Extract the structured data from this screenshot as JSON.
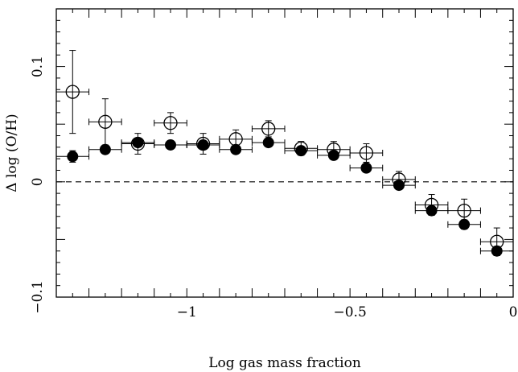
{
  "chart_data": {
    "type": "scatter",
    "xlabel": "Log gas mass fraction",
    "ylabel": "Δ log (O/H)",
    "xlim": [
      -1.4,
      0
    ],
    "ylim": [
      -0.1,
      0.15
    ],
    "x_ticks": [
      {
        "value": -1,
        "label": "−1"
      },
      {
        "value": -0.5,
        "label": "−0.5"
      },
      {
        "value": 0,
        "label": "0"
      }
    ],
    "y_ticks": [
      {
        "value": -0.1,
        "label": "−0.1"
      },
      {
        "value": 0,
        "label": "0"
      },
      {
        "value": 0.1,
        "label": "0.1"
      }
    ],
    "reference_line": {
      "y": 0,
      "style": "dashed"
    },
    "series": [
      {
        "marker": "open-circle",
        "points": [
          {
            "x": -1.35,
            "y": 0.078,
            "xerr": 0.05,
            "yerr_low": 0.036,
            "yerr_high": 0.036
          },
          {
            "x": -1.25,
            "y": 0.052,
            "xerr": 0.05,
            "yerr_low": 0.02,
            "yerr_high": 0.02
          },
          {
            "x": -1.15,
            "y": 0.033,
            "xerr": 0.05,
            "yerr_low": 0.009,
            "yerr_high": 0.009
          },
          {
            "x": -1.05,
            "y": 0.051,
            "xerr": 0.05,
            "yerr_low": 0.009,
            "yerr_high": 0.009
          },
          {
            "x": -0.95,
            "y": 0.033,
            "xerr": 0.05,
            "yerr_low": 0.009,
            "yerr_high": 0.009
          },
          {
            "x": -0.85,
            "y": 0.037,
            "xerr": 0.05,
            "yerr_low": 0.008,
            "yerr_high": 0.008
          },
          {
            "x": -0.75,
            "y": 0.046,
            "xerr": 0.05,
            "yerr_low": 0.007,
            "yerr_high": 0.007
          },
          {
            "x": -0.65,
            "y": 0.029,
            "xerr": 0.05,
            "yerr_low": 0.006,
            "yerr_high": 0.006
          },
          {
            "x": -0.55,
            "y": 0.028,
            "xerr": 0.05,
            "yerr_low": 0.007,
            "yerr_high": 0.007
          },
          {
            "x": -0.45,
            "y": 0.025,
            "xerr": 0.05,
            "yerr_low": 0.008,
            "yerr_high": 0.008
          },
          {
            "x": -0.35,
            "y": 0.002,
            "xerr": 0.05,
            "yerr_low": 0.007,
            "yerr_high": 0.007
          },
          {
            "x": -0.25,
            "y": -0.02,
            "xerr": 0.05,
            "yerr_low": 0.009,
            "yerr_high": 0.009
          },
          {
            "x": -0.15,
            "y": -0.025,
            "xerr": 0.05,
            "yerr_low": 0.01,
            "yerr_high": 0.01
          },
          {
            "x": -0.05,
            "y": -0.052,
            "xerr": 0.05,
            "yerr_low": 0.012,
            "yerr_high": 0.012
          }
        ]
      },
      {
        "marker": "filled-circle",
        "points": [
          {
            "x": -1.35,
            "y": 0.022,
            "xerr": 0.05,
            "yerr_low": 0.005,
            "yerr_high": 0.005
          },
          {
            "x": -1.25,
            "y": 0.028,
            "xerr": 0.05,
            "yerr_low": 0.003,
            "yerr_high": 0.003
          },
          {
            "x": -1.15,
            "y": 0.034,
            "xerr": 0.05,
            "yerr_low": 0.003,
            "yerr_high": 0.003
          },
          {
            "x": -1.05,
            "y": 0.032,
            "xerr": 0.05,
            "yerr_low": 0.003,
            "yerr_high": 0.003
          },
          {
            "x": -0.95,
            "y": 0.032,
            "xerr": 0.05,
            "yerr_low": 0.003,
            "yerr_high": 0.003
          },
          {
            "x": -0.85,
            "y": 0.028,
            "xerr": 0.05,
            "yerr_low": 0.003,
            "yerr_high": 0.003
          },
          {
            "x": -0.75,
            "y": 0.034,
            "xerr": 0.05,
            "yerr_low": 0.003,
            "yerr_high": 0.003
          },
          {
            "x": -0.65,
            "y": 0.027,
            "xerr": 0.05,
            "yerr_low": 0.003,
            "yerr_high": 0.003
          },
          {
            "x": -0.55,
            "y": 0.023,
            "xerr": 0.05,
            "yerr_low": 0.003,
            "yerr_high": 0.003
          },
          {
            "x": -0.45,
            "y": 0.012,
            "xerr": 0.05,
            "yerr_low": 0.003,
            "yerr_high": 0.003
          },
          {
            "x": -0.35,
            "y": -0.003,
            "xerr": 0.05,
            "yerr_low": 0.003,
            "yerr_high": 0.003
          },
          {
            "x": -0.25,
            "y": -0.025,
            "xerr": 0.05,
            "yerr_low": 0.004,
            "yerr_high": 0.004
          },
          {
            "x": -0.15,
            "y": -0.037,
            "xerr": 0.05,
            "yerr_low": 0.004,
            "yerr_high": 0.004
          },
          {
            "x": -0.05,
            "y": -0.06,
            "xerr": 0.05,
            "yerr_low": 0.004,
            "yerr_high": 0.004
          }
        ]
      }
    ]
  }
}
